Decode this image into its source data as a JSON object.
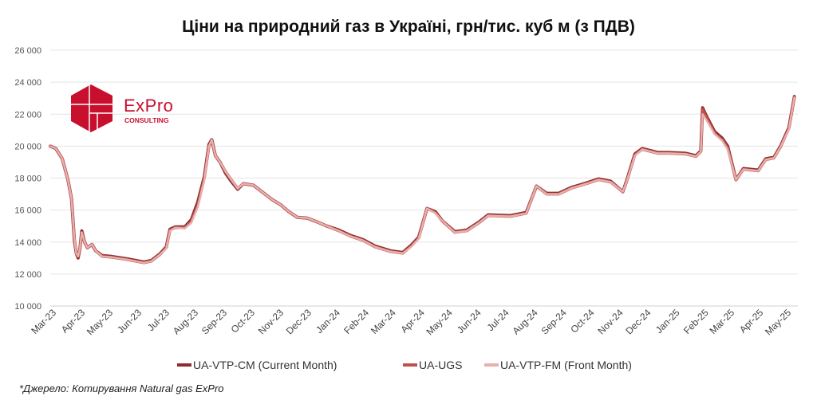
{
  "chart_data": {
    "type": "line",
    "title": "Ціни на природний газ в Україні, грн/тис. куб м (з ПДВ)",
    "xlabel": "",
    "ylabel": "",
    "ylim": [
      10000,
      26000
    ],
    "yticks": [
      "10 000",
      "12 000",
      "14 000",
      "16 000",
      "18 000",
      "20 000",
      "22 000",
      "24 000",
      "26 000"
    ],
    "ytick_values": [
      10000,
      12000,
      14000,
      16000,
      18000,
      20000,
      22000,
      24000,
      26000
    ],
    "xlim": [
      "2023-03-01",
      "2025-05-20"
    ],
    "xtick_labels": [
      "Mar-23",
      "Apr-23",
      "May-23",
      "Jun-23",
      "Jul-23",
      "Aug-23",
      "Sep-23",
      "Oct-23",
      "Nov-23",
      "Dec-23",
      "Jan-24",
      "Feb-24",
      "Mar-24",
      "Apr-24",
      "May-24",
      "Jun-24",
      "Jul-24",
      "Aug-24",
      "Sep-24",
      "Oct-24",
      "Nov-24",
      "Dec-24",
      "Jan-25",
      "Feb-25",
      "Mar-25",
      "Apr-25",
      "May-25"
    ],
    "grid": "horizontal",
    "legend_position": "bottom",
    "x": [
      "2023-03-01",
      "2023-03-07",
      "2023-03-14",
      "2023-03-20",
      "2023-03-24",
      "2023-03-27",
      "2023-03-29",
      "2023-03-31",
      "2023-04-02",
      "2023-04-04",
      "2023-04-07",
      "2023-04-10",
      "2023-04-15",
      "2023-04-19",
      "2023-04-26",
      "2023-05-06",
      "2023-05-23",
      "2023-06-10",
      "2023-06-18",
      "2023-06-27",
      "2023-07-04",
      "2023-07-08",
      "2023-07-14",
      "2023-07-24",
      "2023-07-31",
      "2023-08-07",
      "2023-08-14",
      "2023-08-19",
      "2023-08-22",
      "2023-08-26",
      "2023-08-31",
      "2023-09-06",
      "2023-09-12",
      "2023-09-19",
      "2023-09-25",
      "2023-10-06",
      "2023-10-15",
      "2023-10-25",
      "2023-11-05",
      "2023-11-13",
      "2023-11-22",
      "2023-12-03",
      "2023-12-12",
      "2023-12-24",
      "2024-01-06",
      "2024-01-19",
      "2024-02-01",
      "2024-02-14",
      "2024-03-02",
      "2024-03-15",
      "2024-03-24",
      "2024-04-01",
      "2024-04-10",
      "2024-04-19",
      "2024-04-27",
      "2024-05-10",
      "2024-05-23",
      "2024-06-05",
      "2024-06-15",
      "2024-07-09",
      "2024-07-26",
      "2024-08-06",
      "2024-08-17",
      "2024-08-30",
      "2024-09-12",
      "2024-09-29",
      "2024-10-12",
      "2024-10-25",
      "2024-11-07",
      "2024-11-11",
      "2024-11-20",
      "2024-11-28",
      "2024-12-15",
      "2024-12-27",
      "2025-01-14",
      "2025-01-25",
      "2025-01-30",
      "2025-02-01",
      "2025-02-05",
      "2025-02-14",
      "2025-02-22",
      "2025-02-28",
      "2025-03-09",
      "2025-03-17",
      "2025-04-02",
      "2025-04-10",
      "2025-04-19",
      "2025-04-26",
      "2025-05-05",
      "2025-05-11"
    ],
    "series": [
      {
        "name": "UA-VTP-CM (Current Month)",
        "color": "#8B2E2E",
        "values": [
          20000,
          19850,
          19200,
          17900,
          16700,
          14100,
          13300,
          13000,
          13600,
          14700,
          14000,
          13650,
          13850,
          13450,
          13150,
          13100,
          12950,
          12750,
          12850,
          13250,
          13700,
          14800,
          14950,
          14950,
          15400,
          16500,
          18100,
          20100,
          20400,
          19400,
          19000,
          18300,
          17800,
          17300,
          17650,
          17550,
          17150,
          16700,
          16300,
          15900,
          15550,
          15500,
          15300,
          15000,
          14750,
          14400,
          14150,
          13750,
          13450,
          13350,
          13800,
          14300,
          16100,
          15900,
          15300,
          14650,
          14750,
          15250,
          15700,
          15650,
          15850,
          17500,
          17050,
          17050,
          17400,
          17700,
          17950,
          17800,
          17150,
          17800,
          19500,
          19850,
          19600,
          19600,
          19550,
          19400,
          19700,
          22400,
          21900,
          20900,
          20500,
          20000,
          17900,
          18600,
          18500,
          19200,
          19300,
          20000,
          21150,
          23100
        ]
      },
      {
        "name": "UA-UGS",
        "color": "#C0504D",
        "values": [
          20000,
          19850,
          19200,
          17900,
          16700,
          14200,
          13300,
          13100,
          13600,
          14600,
          14000,
          13650,
          13850,
          13450,
          13100,
          13050,
          12900,
          12700,
          12800,
          13200,
          13650,
          14750,
          14900,
          14900,
          15300,
          16300,
          18000,
          20000,
          20300,
          19400,
          19000,
          18400,
          17900,
          17350,
          17650,
          17550,
          17150,
          16700,
          16300,
          15900,
          15550,
          15500,
          15300,
          15000,
          14700,
          14350,
          14100,
          13700,
          13400,
          13300,
          13750,
          14250,
          16100,
          15850,
          15300,
          14600,
          14700,
          15200,
          15650,
          15600,
          15800,
          17500,
          17000,
          17000,
          17350,
          17650,
          17900,
          17750,
          17150,
          17750,
          19450,
          19800,
          19550,
          19550,
          19500,
          19350,
          19650,
          22300,
          21800,
          20800,
          20400,
          19900,
          17900,
          18550,
          18450,
          19150,
          19250,
          19950,
          21100,
          23050
        ]
      },
      {
        "name": "UA-VTP-FM (Front Month)",
        "color": "#E6B0AE",
        "values": [
          20000,
          19850,
          19200,
          17900,
          16700,
          14200,
          13300,
          13100,
          13600,
          14600,
          14000,
          13650,
          13850,
          13450,
          13100,
          13050,
          12900,
          12700,
          12800,
          13200,
          13600,
          14700,
          14900,
          14850,
          15200,
          16200,
          17900,
          20000,
          20400,
          19400,
          19000,
          18400,
          17900,
          17350,
          17650,
          17550,
          17150,
          16700,
          16300,
          15900,
          15550,
          15500,
          15300,
          15000,
          14700,
          14350,
          14100,
          13700,
          13400,
          13300,
          13700,
          14200,
          16100,
          15800,
          15300,
          14600,
          14700,
          15200,
          15650,
          15600,
          15800,
          17500,
          17000,
          17000,
          17350,
          17650,
          17900,
          17750,
          17150,
          17750,
          19400,
          19800,
          19550,
          19550,
          19500,
          19350,
          19650,
          22000,
          21650,
          20750,
          20350,
          19800,
          17900,
          18550,
          18450,
          19150,
          19250,
          19950,
          21050,
          23050
        ]
      }
    ]
  },
  "footnote": "*Джерело: Котирування Natural gas ExPro",
  "logo": {
    "name": "ExPro",
    "subtitle": "CONSULTING",
    "color": "#C8102E"
  }
}
